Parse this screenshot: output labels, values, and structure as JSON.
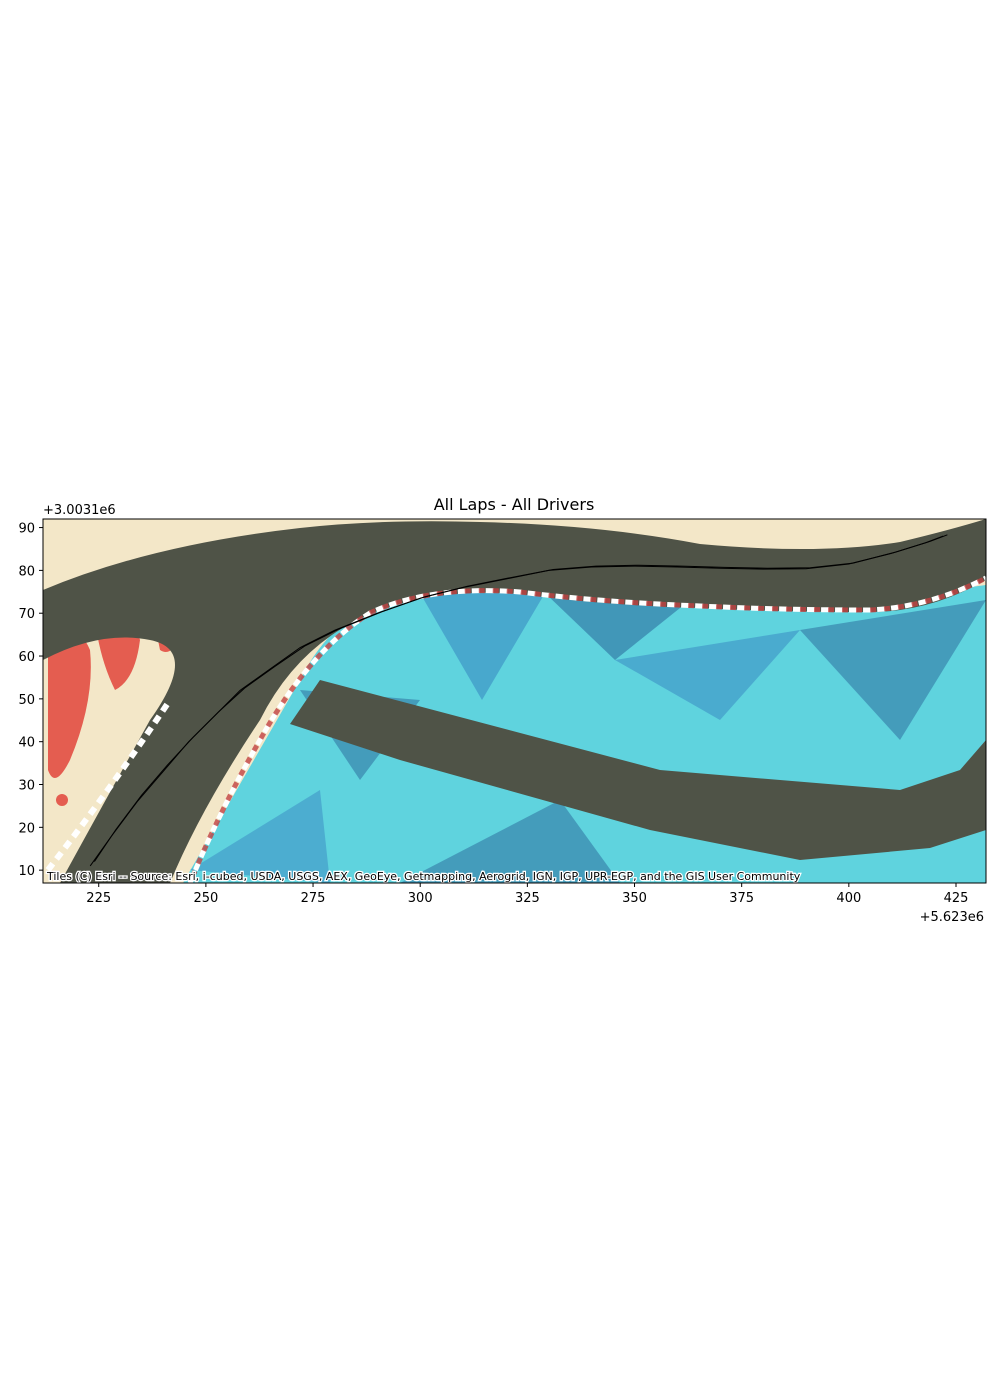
{
  "chart_data": {
    "type": "line",
    "title": "All Laps - All Drivers",
    "xlabel": "",
    "ylabel": "",
    "x_offset_label": "+5.623e6",
    "y_offset_label": "+3.0031e6",
    "xlim": [
      212,
      432
    ],
    "ylim": [
      7,
      92
    ],
    "x_ticks": [
      225,
      250,
      275,
      300,
      325,
      350,
      375,
      400,
      425
    ],
    "y_ticks": [
      10,
      20,
      30,
      40,
      50,
      60,
      70,
      80,
      90
    ],
    "grid": false,
    "basemap_attribution": "Tiles (C) Esri -- Source: Esri, i-cubed, USDA, USGS, AEX, GeoEye, Getmapping, Aerogrid, IGN, IGP, UPR-EGP, and the GIS User Community",
    "series": [
      {
        "color": "#000000",
        "x": [
          223,
          228,
          234,
          240,
          246,
          252,
          258,
          265,
          272,
          280,
          290,
          300,
          310,
          320,
          330,
          340,
          350,
          360,
          370,
          380,
          390,
          400,
          410,
          418,
          422
        ],
        "y": [
          11,
          18,
          26,
          33,
          40,
          46,
          52,
          57,
          62,
          66,
          70,
          73.5,
          76,
          78,
          80,
          80.8,
          81,
          80.8,
          80.5,
          80.3,
          80.4,
          81.5,
          84,
          86.5,
          88
        ]
      },
      {
        "color": "#000000",
        "x": [
          224,
          229,
          235,
          241,
          247,
          253,
          259,
          266,
          273,
          281,
          291,
          301,
          311,
          321,
          331,
          341,
          351,
          361,
          371,
          381,
          391,
          401,
          411,
          419,
          423
        ],
        "y": [
          12,
          19.5,
          27.5,
          34.5,
          41,
          47,
          52.5,
          57.5,
          62.3,
          66.3,
          70.3,
          73.8,
          76.3,
          78.3,
          80.2,
          81,
          81.2,
          81,
          80.7,
          80.5,
          80.6,
          81.7,
          84.3,
          86.8,
          88.3
        ]
      }
    ]
  },
  "colors": {
    "sand": "#f3e7c8",
    "asphalt": "#4f5347",
    "water_light": "#5fd3de",
    "water_mid": "#3f95c6",
    "water_dark": "#2d6f9f",
    "logo_red": "#e2453c",
    "curb_red": "#c24242"
  }
}
